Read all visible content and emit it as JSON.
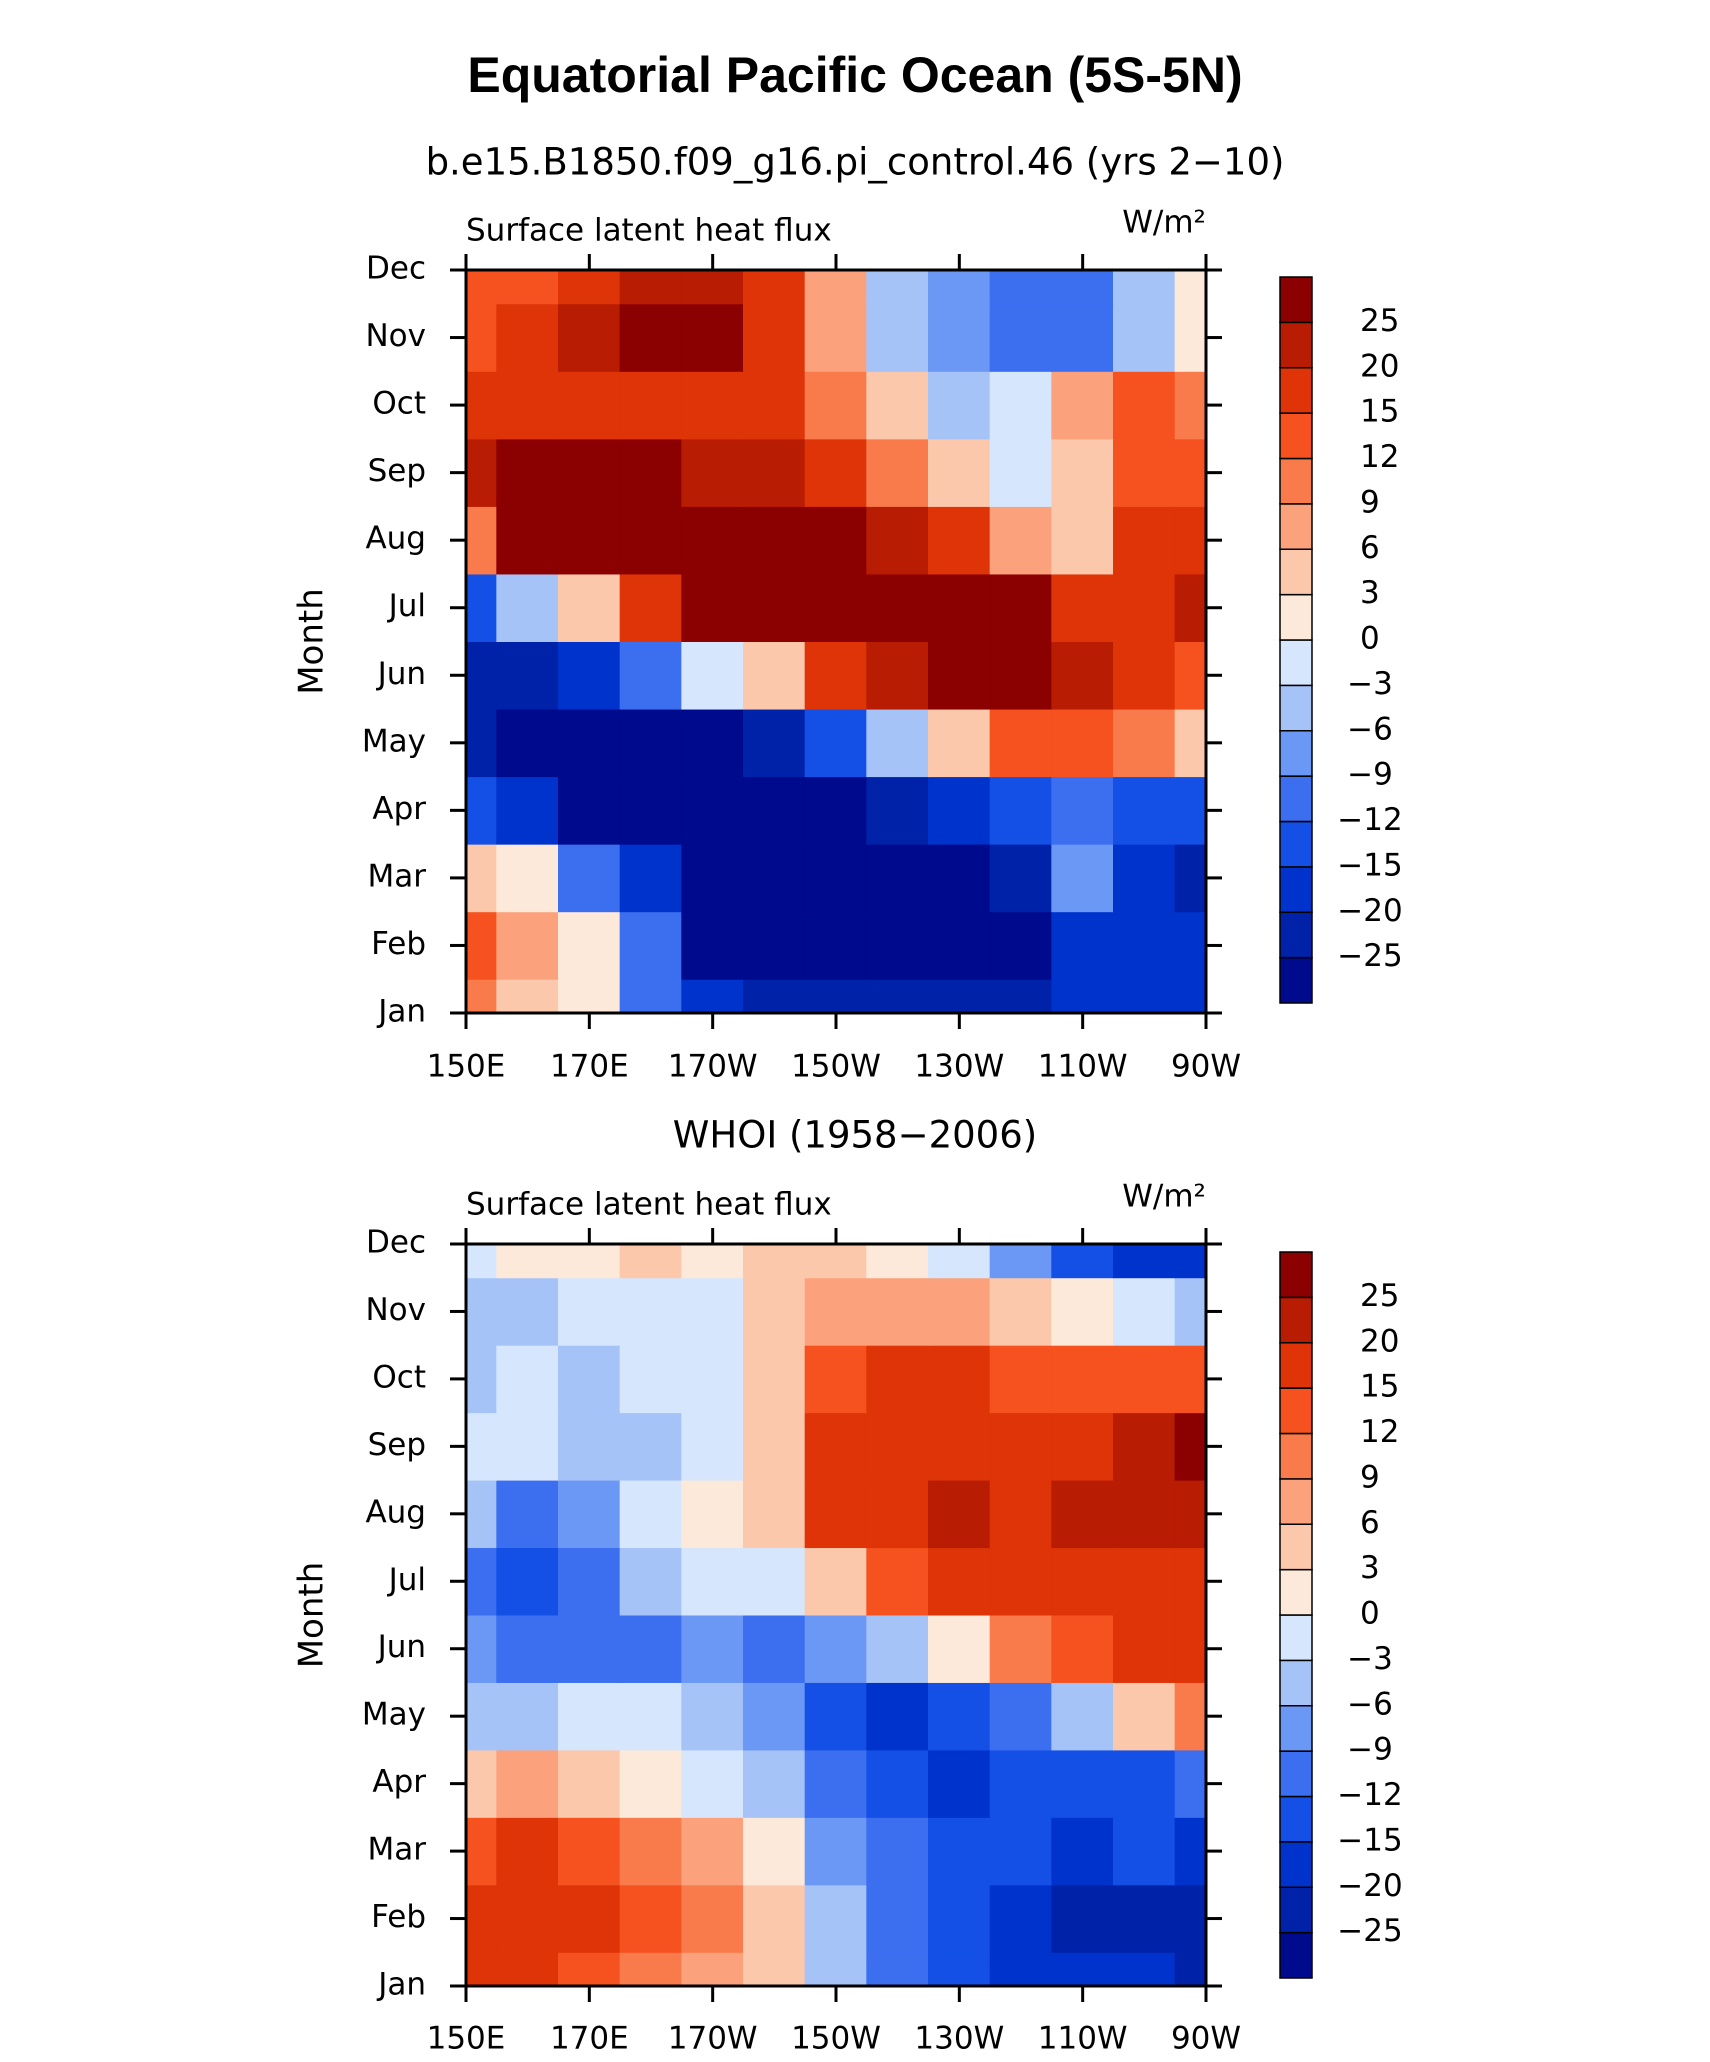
{
  "title": "Equatorial Pacific Ocean (5S-5N)",
  "chart_data": [
    {
      "type": "contour",
      "title": "b.e15.B1850.f09_g16.pi_control.46 (yrs 2−10)",
      "left_string": "Surface latent heat flux",
      "right_string": "W/m²",
      "ylabel": "Month",
      "x": [
        150,
        160,
        170,
        180,
        190,
        200,
        210,
        220,
        230,
        240,
        250,
        260,
        270
      ],
      "xlim": [
        150,
        270
      ],
      "xticks": [
        {
          "value": 150,
          "label": "150E"
        },
        {
          "value": 170,
          "label": "170E"
        },
        {
          "value": 190,
          "label": "170W"
        },
        {
          "value": 210,
          "label": "150W"
        },
        {
          "value": 230,
          "label": "130W"
        },
        {
          "value": 250,
          "label": "110W"
        },
        {
          "value": 270,
          "label": "90W"
        }
      ],
      "categories": [
        "Jan",
        "Feb",
        "Mar",
        "Apr",
        "May",
        "Jun",
        "Jul",
        "Aug",
        "Sep",
        "Oct",
        "Nov",
        "Dec"
      ],
      "z": [
        [
          9,
          5,
          0,
          -12,
          -20,
          -25,
          -25,
          -25,
          -25,
          -22,
          -20,
          -20,
          -20
        ],
        [
          12,
          8,
          0,
          -12,
          -26,
          -28,
          -28,
          -28,
          -28,
          -28,
          -20,
          -20,
          -20
        ],
        [
          5,
          0,
          -10,
          -20,
          -28,
          -28,
          -28,
          -28,
          -28,
          -22,
          -8,
          -18,
          -22
        ],
        [
          -15,
          -20,
          -26,
          -28,
          -28,
          -28,
          -28,
          -22,
          -18,
          -15,
          -10,
          -15,
          -15
        ],
        [
          -22,
          -28,
          -28,
          -28,
          -28,
          -22,
          -15,
          -6,
          3,
          12,
          12,
          9,
          3
        ],
        [
          -22,
          -22,
          -18,
          -10,
          -3,
          5,
          15,
          22,
          28,
          28,
          22,
          15,
          12
        ],
        [
          -15,
          -6,
          3,
          15,
          25,
          28,
          28,
          28,
          28,
          28,
          18,
          18,
          22
        ],
        [
          10,
          25,
          28,
          28,
          28,
          28,
          28,
          22,
          15,
          6,
          3,
          15,
          15
        ],
        [
          22,
          26,
          26,
          25,
          22,
          20,
          15,
          9,
          3,
          -3,
          3,
          12,
          12
        ],
        [
          16,
          16,
          18,
          18,
          18,
          15,
          9,
          3,
          -6,
          -3,
          6,
          12,
          10
        ],
        [
          14,
          18,
          20,
          26,
          25,
          18,
          6,
          -6,
          -9,
          -12,
          -12,
          -6,
          0
        ],
        [
          12,
          14,
          16,
          22,
          20,
          15,
          6,
          -6,
          -9,
          -12,
          -10,
          -6,
          0
        ]
      ],
      "levels": [
        {
          "value": -25,
          "label": "−25"
        },
        {
          "value": -20,
          "label": "−20"
        },
        {
          "value": -15,
          "label": "−15"
        },
        {
          "value": -12,
          "label": "−12"
        },
        {
          "value": -9,
          "label": "−9"
        },
        {
          "value": -6,
          "label": "−6"
        },
        {
          "value": -3,
          "label": "−3"
        },
        0,
        3,
        6,
        9,
        12,
        15,
        20,
        25
      ],
      "colors": [
        "#000a8c",
        "#0022a8",
        "#0033cc",
        "#1450e6",
        "#3c6ef0",
        "#6b97f5",
        "#a6c3f8",
        "#d6e6fc",
        "#fde9da",
        "#fcc8ac",
        "#fba27c",
        "#f97a4a",
        "#f5521f",
        "#de3408",
        "#b81c03",
        "#8b0000"
      ]
    },
    {
      "type": "contour",
      "title": "WHOI (1958−2006)",
      "left_string": "Surface latent heat flux",
      "right_string": "W/m²",
      "ylabel": "Month",
      "x": [
        150,
        160,
        170,
        180,
        190,
        200,
        210,
        220,
        230,
        240,
        250,
        260,
        270
      ],
      "xlim": [
        150,
        270
      ],
      "xticks": [
        {
          "value": 150,
          "label": "150E"
        },
        {
          "value": 170,
          "label": "170E"
        },
        {
          "value": 190,
          "label": "170W"
        },
        {
          "value": 210,
          "label": "150W"
        },
        {
          "value": 230,
          "label": "130W"
        },
        {
          "value": 250,
          "label": "110W"
        },
        {
          "value": 270,
          "label": "90W"
        }
      ],
      "categories": [
        "Jan",
        "Feb",
        "Mar",
        "Apr",
        "May",
        "Jun",
        "Jul",
        "Aug",
        "Sep",
        "Oct",
        "Nov",
        "Dec"
      ],
      "z": [
        [
          15,
          18,
          12,
          9,
          6,
          3,
          -6,
          -12,
          -15,
          -18,
          -18,
          -20,
          -25
        ],
        [
          18,
          18,
          18,
          12,
          10,
          3,
          -6,
          -12,
          -15,
          -18,
          -22,
          -22,
          -22
        ],
        [
          12,
          15,
          12,
          9,
          6,
          0,
          -9,
          -12,
          -15,
          -15,
          -18,
          -15,
          -20
        ],
        [
          3,
          6,
          3,
          0,
          -3,
          -6,
          -12,
          -15,
          -18,
          -15,
          -15,
          -15,
          -12
        ],
        [
          -6,
          -6,
          -3,
          -3,
          -6,
          -9,
          -15,
          -18,
          -15,
          -12,
          -6,
          3,
          9
        ],
        [
          -9,
          -12,
          -12,
          -12,
          -9,
          -12,
          -9,
          -6,
          0,
          9,
          12,
          15,
          15
        ],
        [
          -12,
          -15,
          -12,
          -6,
          -3,
          -3,
          3,
          12,
          18,
          15,
          18,
          18,
          18
        ],
        [
          -6,
          -12,
          -9,
          -3,
          0,
          3,
          15,
          18,
          20,
          15,
          20,
          20,
          22
        ],
        [
          -3,
          -3,
          -6,
          -6,
          -3,
          3,
          15,
          18,
          18,
          15,
          18,
          20,
          25
        ],
        [
          -6,
          -3,
          -6,
          -3,
          -3,
          3,
          12,
          15,
          15,
          12,
          12,
          12,
          12
        ],
        [
          -6,
          -6,
          -3,
          -3,
          -3,
          3,
          6,
          6,
          6,
          3,
          0,
          -3,
          -6
        ],
        [
          -3,
          0,
          0,
          3,
          0,
          3,
          3,
          0,
          -3,
          -9,
          -15,
          -20,
          -20
        ]
      ],
      "levels": [
        {
          "value": -25,
          "label": "−25"
        },
        {
          "value": -20,
          "label": "−20"
        },
        {
          "value": -15,
          "label": "−15"
        },
        {
          "value": -12,
          "label": "−12"
        },
        {
          "value": -9,
          "label": "−9"
        },
        {
          "value": -6,
          "label": "−6"
        },
        {
          "value": -3,
          "label": "−3"
        },
        0,
        3,
        6,
        9,
        12,
        15,
        20,
        25
      ],
      "colors": [
        "#000a8c",
        "#0022a8",
        "#0033cc",
        "#1450e6",
        "#3c6ef0",
        "#6b97f5",
        "#a6c3f8",
        "#d6e6fc",
        "#fde9da",
        "#fcc8ac",
        "#fba27c",
        "#f97a4a",
        "#f5521f",
        "#de3408",
        "#b81c03",
        "#8b0000"
      ]
    }
  ]
}
